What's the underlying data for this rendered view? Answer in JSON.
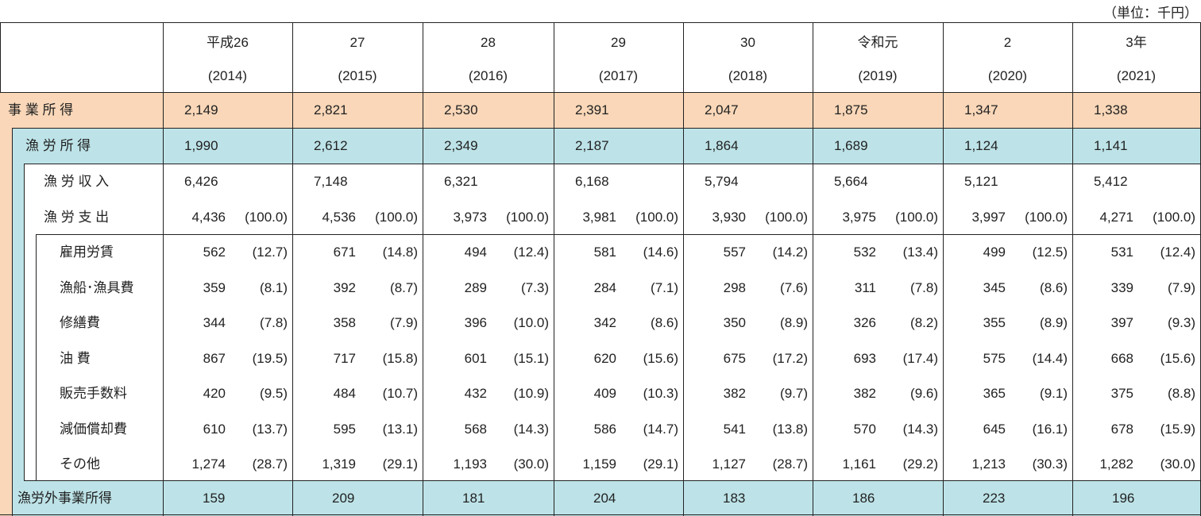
{
  "unit_label": "（単位：千円）",
  "colors": {
    "business_income_row": "#f9d7b8",
    "fishing_income_row": "#bde3e8"
  },
  "columns": [
    {
      "era": "平成26",
      "year": "(2014)"
    },
    {
      "era": "27",
      "year": "(2015)"
    },
    {
      "era": "28",
      "year": "(2016)"
    },
    {
      "era": "29",
      "year": "(2017)"
    },
    {
      "era": "30",
      "year": "(2018)"
    },
    {
      "era": "令和元",
      "year": "(2019)"
    },
    {
      "era": "2",
      "year": "(2020)"
    },
    {
      "era": "3年",
      "year": "(2021)"
    }
  ],
  "rows": [
    {
      "label": "事 業 所 得",
      "kind": "business",
      "values": [
        "2,149",
        "2,821",
        "2,530",
        "2,391",
        "2,047",
        "1,875",
        "1,347",
        "1,338"
      ]
    },
    {
      "label": "漁 労 所 得",
      "kind": "fishing",
      "values": [
        "1,990",
        "2,612",
        "2,349",
        "2,187",
        "1,864",
        "1,689",
        "1,124",
        "1,141"
      ]
    },
    {
      "label": "漁 労 収 入",
      "kind": "revenue",
      "values": [
        "6,426",
        "7,148",
        "6,321",
        "6,168",
        "5,794",
        "5,664",
        "5,121",
        "5,412"
      ]
    },
    {
      "label": "漁 労 支 出",
      "kind": "expense",
      "values": [
        "4,436",
        "4,536",
        "3,973",
        "3,981",
        "3,930",
        "3,975",
        "3,997",
        "4,271"
      ],
      "pcts": [
        "(100.0)",
        "(100.0)",
        "(100.0)",
        "(100.0)",
        "(100.0)",
        "(100.0)",
        "(100.0)",
        "(100.0)"
      ]
    },
    {
      "label": "雇用労賃",
      "kind": "item",
      "values": [
        "562",
        "671",
        "494",
        "581",
        "557",
        "532",
        "499",
        "531"
      ],
      "pcts": [
        "(12.7)",
        "(14.8)",
        "(12.4)",
        "(14.6)",
        "(14.2)",
        "(13.4)",
        "(12.5)",
        "(12.4)"
      ]
    },
    {
      "label": "漁船･漁具費",
      "kind": "item",
      "values": [
        "359",
        "392",
        "289",
        "284",
        "298",
        "311",
        "345",
        "339"
      ],
      "pcts": [
        "(8.1)",
        "(8.7)",
        "(7.3)",
        "(7.1)",
        "(7.6)",
        "(7.8)",
        "(8.6)",
        "(7.9)"
      ]
    },
    {
      "label": "修繕費",
      "kind": "item",
      "values": [
        "344",
        "358",
        "396",
        "342",
        "350",
        "326",
        "355",
        "397"
      ],
      "pcts": [
        "(7.8)",
        "(7.9)",
        "(10.0)",
        "(8.6)",
        "(8.9)",
        "(8.2)",
        "(8.9)",
        "(9.3)"
      ]
    },
    {
      "label": "油 費",
      "kind": "item",
      "values": [
        "867",
        "717",
        "601",
        "620",
        "675",
        "693",
        "575",
        "668"
      ],
      "pcts": [
        "(19.5)",
        "(15.8)",
        "(15.1)",
        "(15.6)",
        "(17.2)",
        "(17.4)",
        "(14.4)",
        "(15.6)"
      ]
    },
    {
      "label": "販売手数料",
      "kind": "item",
      "values": [
        "420",
        "484",
        "432",
        "409",
        "382",
        "382",
        "365",
        "375"
      ],
      "pcts": [
        "(9.5)",
        "(10.7)",
        "(10.9)",
        "(10.3)",
        "(9.7)",
        "(9.6)",
        "(9.1)",
        "(8.8)"
      ]
    },
    {
      "label": "減価償却費",
      "kind": "item",
      "values": [
        "610",
        "595",
        "568",
        "586",
        "541",
        "570",
        "645",
        "678"
      ],
      "pcts": [
        "(13.7)",
        "(13.1)",
        "(14.3)",
        "(14.7)",
        "(13.8)",
        "(14.3)",
        "(16.1)",
        "(15.9)"
      ]
    },
    {
      "label": "その他",
      "kind": "item",
      "values": [
        "1,274",
        "1,319",
        "1,193",
        "1,159",
        "1,127",
        "1,161",
        "1,213",
        "1,282"
      ],
      "pcts": [
        "(28.7)",
        "(29.1)",
        "(30.0)",
        "(29.1)",
        "(28.7)",
        "(29.2)",
        "(30.3)",
        "(30.0)"
      ]
    },
    {
      "label": "漁労外事業所得",
      "kind": "nonfishing",
      "values": [
        "159",
        "209",
        "181",
        "204",
        "183",
        "186",
        "223",
        "196"
      ]
    }
  ]
}
